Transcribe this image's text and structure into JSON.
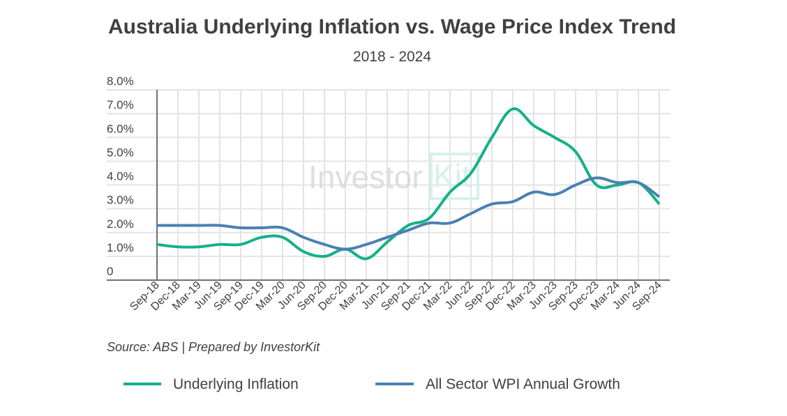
{
  "chart_data": {
    "type": "line",
    "title": "Australia Underlying Inflation vs. Wage Price Index Trend",
    "subtitle": "2018 - 2024",
    "source": "Source: ABS | Prepared by InvestorKit",
    "watermark": "InvestorKit",
    "xlabel": "",
    "ylabel": "",
    "ylim": [
      0,
      8
    ],
    "yticks": [
      "0",
      "1.0%",
      "2.0%",
      "3.0%",
      "4.0%",
      "5.0%",
      "6.0%",
      "7.0%",
      "8.0%"
    ],
    "grid": true,
    "legend_position": "bottom",
    "categories": [
      "Sep-18",
      "Dec-18",
      "Mar-19",
      "Jun-19",
      "Sep-19",
      "Dec-19",
      "Mar-20",
      "Jun-20",
      "Sep-20",
      "Dec-20",
      "Mar-21",
      "Jun-21",
      "Sep-21",
      "Dec-21",
      "Mar-22",
      "Jun-22",
      "Sep-22",
      "Dec-22",
      "Mar-23",
      "Jun-23",
      "Sep-23",
      "Dec-23",
      "Mar-24",
      "Jun-24",
      "Sep-24"
    ],
    "series": [
      {
        "name": "Underlying Inflation",
        "color": "#14b08a",
        "values": [
          1.5,
          1.4,
          1.4,
          1.5,
          1.5,
          1.8,
          1.8,
          1.2,
          1.0,
          1.3,
          0.9,
          1.6,
          2.3,
          2.6,
          3.7,
          4.5,
          6.0,
          7.2,
          6.5,
          6.0,
          5.4,
          4.0,
          4.0,
          4.1,
          3.2
        ]
      },
      {
        "name": "All Sector WPI Annual Growth",
        "color": "#4a80b4",
        "values": [
          2.3,
          2.3,
          2.3,
          2.3,
          2.2,
          2.2,
          2.2,
          1.8,
          1.5,
          1.3,
          1.5,
          1.8,
          2.1,
          2.4,
          2.4,
          2.8,
          3.2,
          3.3,
          3.7,
          3.6,
          4.0,
          4.3,
          4.1,
          4.1,
          3.5
        ]
      }
    ]
  }
}
